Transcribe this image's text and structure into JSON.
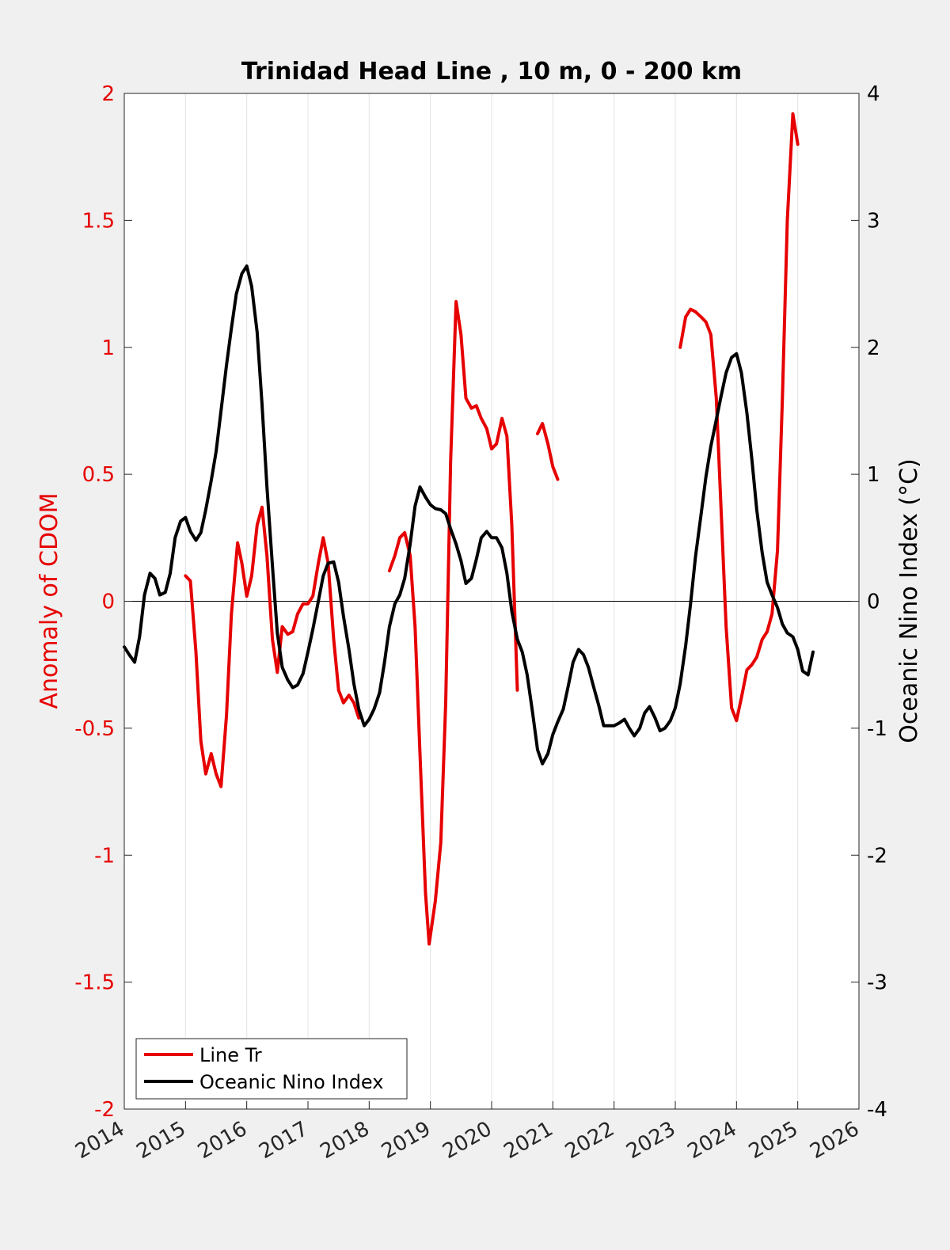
{
  "chart_data": {
    "type": "line",
    "title": "Trinidad Head Line , 10 m, 0 - 200 km",
    "xlabel": "",
    "ylabel_left": "Anomaly of CDOM",
    "ylabel_right": "Oceanic Nino Index (°C)",
    "xlim": [
      2014,
      2026
    ],
    "ylim_left": [
      -2,
      2
    ],
    "ylim_right": [
      -4,
      4
    ],
    "x_ticks": [
      "2014",
      "2015",
      "2016",
      "2017",
      "2018",
      "2019",
      "2020",
      "2021",
      "2022",
      "2023",
      "2024",
      "2025",
      "2026"
    ],
    "y_ticks_left": [
      "2",
      "1.5",
      "1",
      "0.5",
      "0",
      "-0.5",
      "-1",
      "-1.5",
      "-2"
    ],
    "y_ticks_right": [
      "4",
      "3",
      "2",
      "1",
      "0",
      "-1",
      "-2",
      "-3",
      "-4"
    ],
    "grid": "vertical",
    "legend_position": "bottom-left",
    "colors": {
      "line_tr": "#e60000",
      "oni": "#000000",
      "left_axis": "#e60000",
      "right_axis": "#000000"
    },
    "series": [
      {
        "name": "Line Tr",
        "axis": "left",
        "segments": [
          [
            [
              2015.0,
              0.1
            ],
            [
              2015.08,
              0.08
            ],
            [
              2015.17,
              -0.2
            ],
            [
              2015.25,
              -0.55
            ],
            [
              2015.33,
              -0.68
            ],
            [
              2015.42,
              -0.6
            ],
            [
              2015.5,
              -0.68
            ],
            [
              2015.58,
              -0.73
            ],
            [
              2015.67,
              -0.45
            ],
            [
              2015.75,
              -0.05
            ],
            [
              2015.85,
              0.23
            ],
            [
              2015.92,
              0.15
            ],
            [
              2016.0,
              0.02
            ],
            [
              2016.08,
              0.1
            ],
            [
              2016.17,
              0.3
            ],
            [
              2016.25,
              0.37
            ],
            [
              2016.33,
              0.18
            ],
            [
              2016.42,
              -0.15
            ],
            [
              2016.5,
              -0.28
            ],
            [
              2016.58,
              -0.1
            ],
            [
              2016.67,
              -0.13
            ],
            [
              2016.75,
              -0.12
            ],
            [
              2016.83,
              -0.05
            ],
            [
              2016.92,
              -0.01
            ],
            [
              2017.0,
              -0.01
            ],
            [
              2017.08,
              0.02
            ],
            [
              2017.17,
              0.15
            ],
            [
              2017.25,
              0.25
            ],
            [
              2017.33,
              0.15
            ],
            [
              2017.42,
              -0.15
            ],
            [
              2017.5,
              -0.35
            ],
            [
              2017.58,
              -0.4
            ],
            [
              2017.67,
              -0.37
            ],
            [
              2017.75,
              -0.4
            ],
            [
              2017.83,
              -0.46
            ]
          ],
          [
            [
              2018.33,
              0.12
            ],
            [
              2018.42,
              0.18
            ],
            [
              2018.5,
              0.25
            ],
            [
              2018.58,
              0.27
            ],
            [
              2018.67,
              0.18
            ],
            [
              2018.75,
              -0.1
            ],
            [
              2018.83,
              -0.6
            ],
            [
              2018.92,
              -1.15
            ],
            [
              2018.98,
              -1.35
            ],
            [
              2019.08,
              -1.18
            ],
            [
              2019.17,
              -0.95
            ],
            [
              2019.25,
              -0.4
            ],
            [
              2019.33,
              0.55
            ],
            [
              2019.42,
              1.18
            ],
            [
              2019.5,
              1.05
            ],
            [
              2019.58,
              0.8
            ],
            [
              2019.67,
              0.76
            ],
            [
              2019.75,
              0.77
            ],
            [
              2019.83,
              0.72
            ],
            [
              2019.92,
              0.68
            ],
            [
              2020.0,
              0.6
            ],
            [
              2020.08,
              0.62
            ],
            [
              2020.17,
              0.72
            ],
            [
              2020.25,
              0.65
            ],
            [
              2020.33,
              0.3
            ],
            [
              2020.42,
              -0.35
            ]
          ],
          [
            [
              2020.75,
              0.66
            ],
            [
              2020.83,
              0.7
            ],
            [
              2020.92,
              0.62
            ],
            [
              2021.0,
              0.53
            ],
            [
              2021.08,
              0.48
            ]
          ],
          [
            [
              2023.08,
              1.0
            ],
            [
              2023.17,
              1.12
            ],
            [
              2023.25,
              1.15
            ],
            [
              2023.33,
              1.14
            ],
            [
              2023.42,
              1.12
            ],
            [
              2023.5,
              1.1
            ],
            [
              2023.58,
              1.05
            ],
            [
              2023.67,
              0.8
            ],
            [
              2023.75,
              0.35
            ],
            [
              2023.83,
              -0.1
            ],
            [
              2023.92,
              -0.42
            ],
            [
              2024.0,
              -0.47
            ],
            [
              2024.08,
              -0.38
            ],
            [
              2024.17,
              -0.27
            ],
            [
              2024.25,
              -0.25
            ],
            [
              2024.33,
              -0.22
            ],
            [
              2024.42,
              -0.15
            ],
            [
              2024.5,
              -0.12
            ],
            [
              2024.58,
              -0.05
            ],
            [
              2024.67,
              0.2
            ],
            [
              2024.75,
              0.8
            ],
            [
              2024.83,
              1.5
            ],
            [
              2024.92,
              1.92
            ],
            [
              2025.0,
              1.8
            ]
          ]
        ]
      },
      {
        "name": "Oceanic Nino Index",
        "axis": "right",
        "segments": [
          [
            [
              2014.0,
              -0.36
            ],
            [
              2014.08,
              -0.42
            ],
            [
              2014.17,
              -0.48
            ],
            [
              2014.25,
              -0.28
            ],
            [
              2014.33,
              0.05
            ],
            [
              2014.42,
              0.22
            ],
            [
              2014.5,
              0.18
            ],
            [
              2014.58,
              0.05
            ],
            [
              2014.67,
              0.07
            ],
            [
              2014.75,
              0.22
            ],
            [
              2014.83,
              0.5
            ],
            [
              2014.92,
              0.63
            ],
            [
              2015.0,
              0.66
            ],
            [
              2015.08,
              0.55
            ],
            [
              2015.17,
              0.48
            ],
            [
              2015.25,
              0.54
            ],
            [
              2015.33,
              0.72
            ],
            [
              2015.42,
              0.95
            ],
            [
              2015.5,
              1.18
            ],
            [
              2015.58,
              1.5
            ],
            [
              2015.67,
              1.86
            ],
            [
              2015.75,
              2.15
            ],
            [
              2015.83,
              2.42
            ],
            [
              2015.92,
              2.58
            ],
            [
              2016.0,
              2.64
            ],
            [
              2016.08,
              2.48
            ],
            [
              2016.17,
              2.12
            ],
            [
              2016.25,
              1.55
            ],
            [
              2016.33,
              0.9
            ],
            [
              2016.42,
              0.28
            ],
            [
              2016.5,
              -0.25
            ],
            [
              2016.58,
              -0.52
            ],
            [
              2016.67,
              -0.62
            ],
            [
              2016.75,
              -0.68
            ],
            [
              2016.83,
              -0.66
            ],
            [
              2016.92,
              -0.57
            ],
            [
              2017.0,
              -0.4
            ],
            [
              2017.08,
              -0.22
            ],
            [
              2017.17,
              0.0
            ],
            [
              2017.25,
              0.2
            ],
            [
              2017.33,
              0.3
            ],
            [
              2017.42,
              0.31
            ],
            [
              2017.5,
              0.15
            ],
            [
              2017.58,
              -0.12
            ],
            [
              2017.67,
              -0.38
            ],
            [
              2017.75,
              -0.65
            ],
            [
              2017.83,
              -0.85
            ],
            [
              2017.92,
              -0.98
            ],
            [
              2018.0,
              -0.93
            ],
            [
              2018.08,
              -0.85
            ],
            [
              2018.17,
              -0.72
            ],
            [
              2018.25,
              -0.48
            ],
            [
              2018.33,
              -0.2
            ],
            [
              2018.42,
              -0.02
            ],
            [
              2018.5,
              0.05
            ],
            [
              2018.58,
              0.18
            ],
            [
              2018.67,
              0.45
            ],
            [
              2018.75,
              0.75
            ],
            [
              2018.83,
              0.9
            ],
            [
              2018.92,
              0.82
            ],
            [
              2019.0,
              0.76
            ],
            [
              2019.08,
              0.73
            ],
            [
              2019.17,
              0.72
            ],
            [
              2019.25,
              0.69
            ],
            [
              2019.33,
              0.57
            ],
            [
              2019.42,
              0.45
            ],
            [
              2019.5,
              0.32
            ],
            [
              2019.58,
              0.14
            ],
            [
              2019.67,
              0.18
            ],
            [
              2019.75,
              0.33
            ],
            [
              2019.83,
              0.5
            ],
            [
              2019.92,
              0.55
            ],
            [
              2020.0,
              0.5
            ],
            [
              2020.08,
              0.5
            ],
            [
              2020.17,
              0.42
            ],
            [
              2020.25,
              0.22
            ],
            [
              2020.33,
              -0.08
            ],
            [
              2020.42,
              -0.3
            ],
            [
              2020.5,
              -0.4
            ],
            [
              2020.58,
              -0.58
            ],
            [
              2020.67,
              -0.88
            ],
            [
              2020.75,
              -1.17
            ],
            [
              2020.83,
              -1.28
            ],
            [
              2020.92,
              -1.2
            ],
            [
              2021.0,
              -1.05
            ],
            [
              2021.08,
              -0.95
            ],
            [
              2021.17,
              -0.85
            ],
            [
              2021.25,
              -0.67
            ],
            [
              2021.33,
              -0.48
            ],
            [
              2021.42,
              -0.38
            ],
            [
              2021.5,
              -0.42
            ],
            [
              2021.58,
              -0.52
            ],
            [
              2021.67,
              -0.68
            ],
            [
              2021.75,
              -0.82
            ],
            [
              2021.83,
              -0.98
            ],
            [
              2021.92,
              -0.98
            ],
            [
              2022.0,
              -0.98
            ],
            [
              2022.08,
              -0.96
            ],
            [
              2022.17,
              -0.93
            ],
            [
              2022.25,
              -1.0
            ],
            [
              2022.33,
              -1.06
            ],
            [
              2022.42,
              -1.0
            ],
            [
              2022.5,
              -0.88
            ],
            [
              2022.58,
              -0.83
            ],
            [
              2022.67,
              -0.92
            ],
            [
              2022.75,
              -1.02
            ],
            [
              2022.83,
              -1.0
            ],
            [
              2022.92,
              -0.94
            ],
            [
              2023.0,
              -0.84
            ],
            [
              2023.08,
              -0.65
            ],
            [
              2023.17,
              -0.35
            ],
            [
              2023.25,
              -0.02
            ],
            [
              2023.33,
              0.35
            ],
            [
              2023.42,
              0.68
            ],
            [
              2023.5,
              0.98
            ],
            [
              2023.58,
              1.22
            ],
            [
              2023.67,
              1.43
            ],
            [
              2023.75,
              1.62
            ],
            [
              2023.83,
              1.8
            ],
            [
              2023.92,
              1.92
            ],
            [
              2024.0,
              1.95
            ],
            [
              2024.08,
              1.8
            ],
            [
              2024.17,
              1.48
            ],
            [
              2024.25,
              1.12
            ],
            [
              2024.33,
              0.72
            ],
            [
              2024.42,
              0.38
            ],
            [
              2024.5,
              0.15
            ],
            [
              2024.58,
              0.05
            ],
            [
              2024.67,
              -0.05
            ],
            [
              2024.75,
              -0.18
            ],
            [
              2024.83,
              -0.25
            ],
            [
              2024.92,
              -0.28
            ],
            [
              2025.0,
              -0.38
            ],
            [
              2025.08,
              -0.55
            ],
            [
              2025.17,
              -0.58
            ],
            [
              2025.25,
              -0.4
            ]
          ]
        ]
      }
    ]
  }
}
